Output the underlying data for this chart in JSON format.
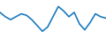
{
  "x": [
    0,
    1,
    2,
    3,
    4,
    5,
    6,
    7,
    8,
    9,
    10,
    11,
    12,
    13,
    14,
    15,
    16,
    17,
    18,
    19,
    20
  ],
  "y": [
    78,
    72,
    68,
    72,
    76,
    74,
    68,
    60,
    52,
    58,
    72,
    86,
    80,
    72,
    78,
    62,
    54,
    64,
    76,
    72,
    70
  ],
  "line_color": "#1a7abf",
  "background_color": "#ffffff",
  "linewidth": 1.2,
  "ylim_min": 40,
  "ylim_max": 95
}
